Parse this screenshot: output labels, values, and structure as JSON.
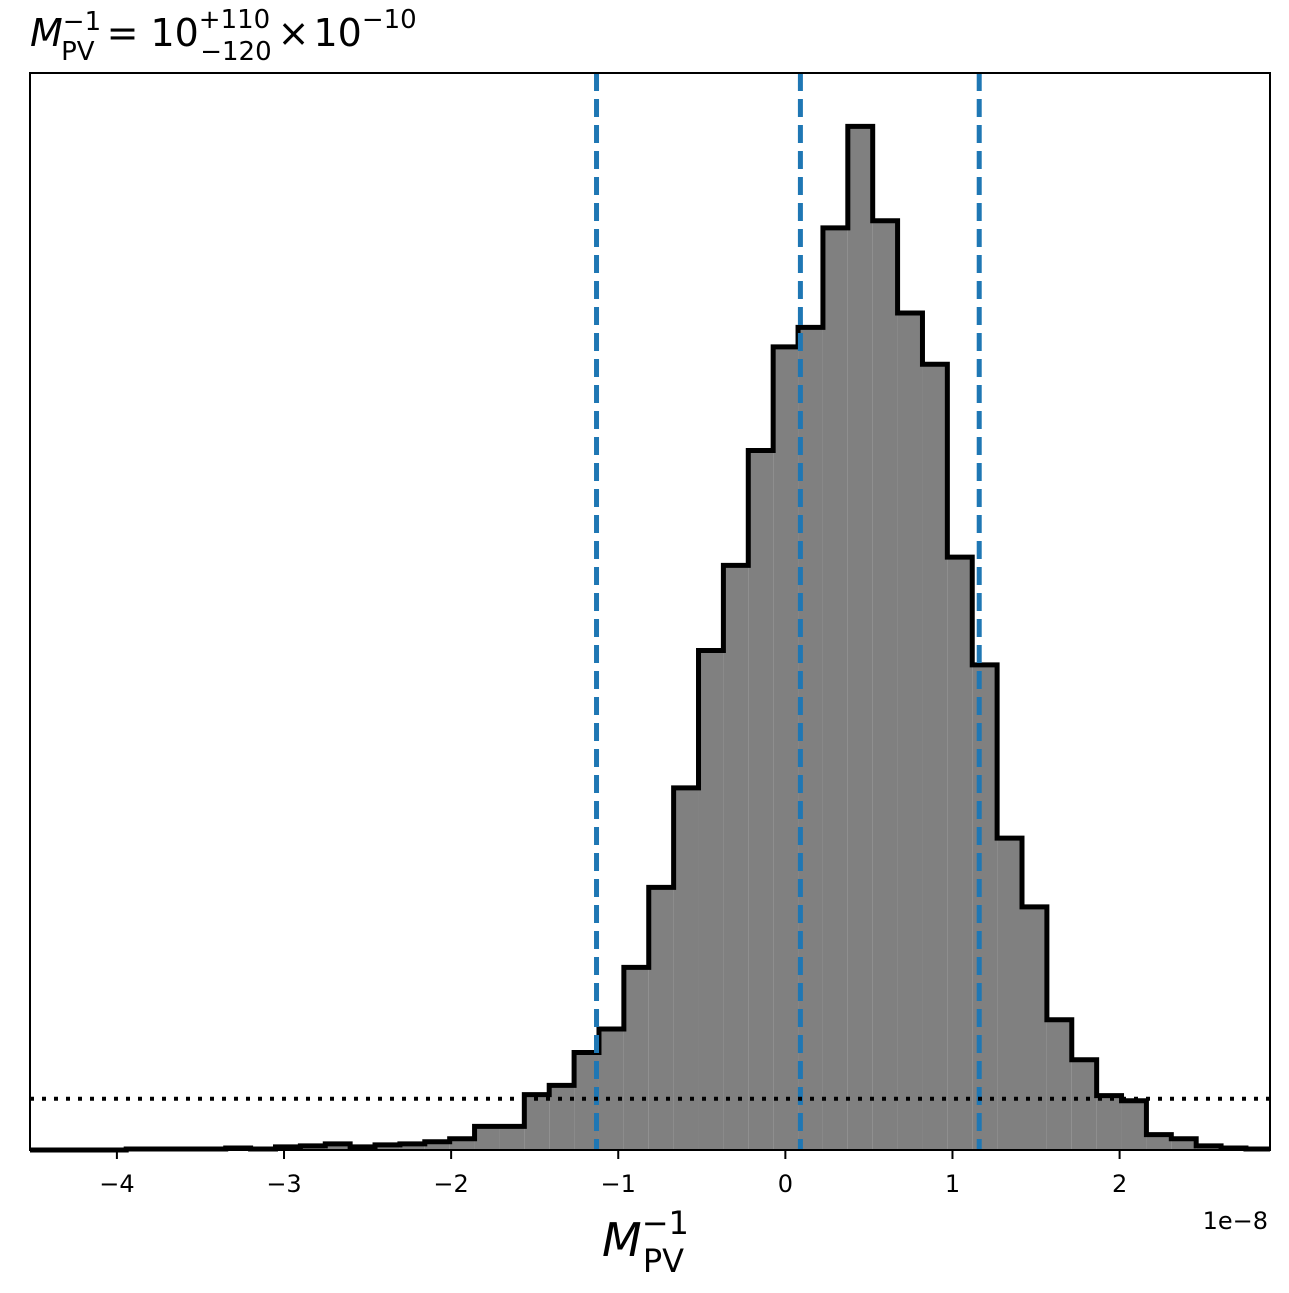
{
  "chart_data": {
    "type": "histogram",
    "title": {
      "symbol": "M",
      "symbol_sub": "PV",
      "symbol_sup": "−1",
      "equals": "=",
      "value": "10",
      "err_plus": "+110",
      "err_minus": "−120",
      "times": "×",
      "scale_base": "10",
      "scale_exp": "−10"
    },
    "xlabel": {
      "symbol": "M",
      "sub": "PV",
      "sup": "−1"
    },
    "x_offset_text": "1e−8",
    "xlim": [
      -4.52,
      2.9
    ],
    "ylim": [
      0,
      1.05
    ],
    "x_ticks": [
      {
        "value": -4,
        "label": "−4"
      },
      {
        "value": -3,
        "label": "−3"
      },
      {
        "value": -2,
        "label": "−2"
      },
      {
        "value": -1,
        "label": "−1"
      },
      {
        "value": 0,
        "label": "0"
      },
      {
        "value": 1,
        "label": "1"
      },
      {
        "value": 2,
        "label": "2"
      }
    ],
    "bin_width": 0.1489,
    "bin_edges_start": -4.54,
    "bin_heights": [
      0.0,
      0.0,
      0.0,
      0.0,
      0.001,
      0.001,
      0.001,
      0.001,
      0.002,
      0.001,
      0.003,
      0.004,
      0.006,
      0.003,
      0.005,
      0.006,
      0.008,
      0.011,
      0.023,
      0.023,
      0.054,
      0.063,
      0.095,
      0.118,
      0.178,
      0.256,
      0.353,
      0.487,
      0.57,
      0.682,
      0.783,
      0.802,
      0.899,
      0.998,
      0.906,
      0.816,
      0.766,
      0.578,
      0.473,
      0.304,
      0.237,
      0.127,
      0.088,
      0.053,
      0.048,
      0.015,
      0.011,
      0.004,
      0.002,
      0.001
    ],
    "vlines": {
      "color": "#1f77b4",
      "style": "dashed",
      "values": [
        -1.13,
        0.09,
        1.16
      ]
    },
    "hline": {
      "color": "#000000",
      "style": "dotted",
      "value": 0.05
    },
    "fill_color": "#808080",
    "edge_color": "#000000"
  }
}
